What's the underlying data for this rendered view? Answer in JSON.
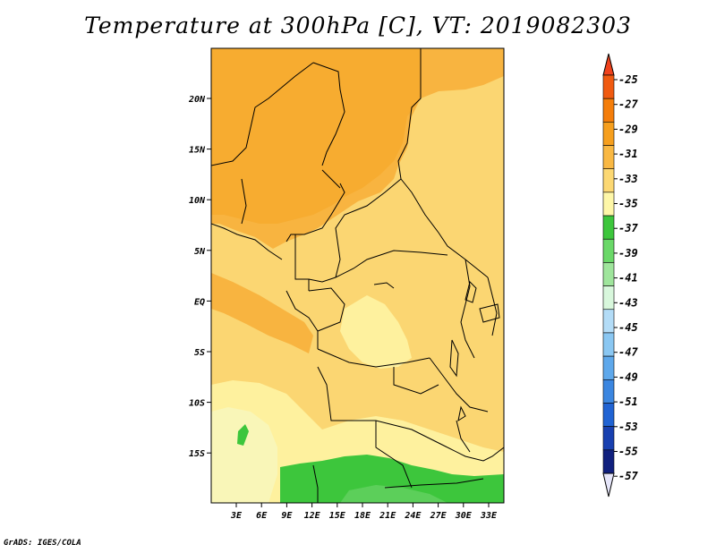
{
  "title": "Temperature at 300hPa [C], VT: 2019082303",
  "credit": "GrADS: IGES/COLA",
  "map": {
    "lat_ticks": [
      "20N",
      "15N",
      "10N",
      "5N",
      "EQ",
      "5S",
      "10S",
      "15S"
    ],
    "lon_ticks": [
      "3E",
      "6E",
      "9E",
      "12E",
      "15E",
      "18E",
      "21E",
      "24E",
      "27E",
      "30E",
      "33E"
    ],
    "field_colors": {
      "c27_29": "#f6a623",
      "c29_31": "#f8b440",
      "c31_33": "#fbd672",
      "c33_35": "#fef19e",
      "c35_37": "#f9f6b8",
      "c37_39": "#3dc63c",
      "c39_41": "#5ccf5a"
    }
  },
  "colorbar": {
    "labels": [
      "-25",
      "-27",
      "-29",
      "-31",
      "-33",
      "-35",
      "-37",
      "-39",
      "-41",
      "-43",
      "-45",
      "-47",
      "-49",
      "-51",
      "-53",
      "-55",
      "-57"
    ],
    "colors": [
      "#f05a10",
      "#f47d0a",
      "#f69f1e",
      "#f9b843",
      "#fcd873",
      "#fef7a8",
      "#3dc63c",
      "#6ad868",
      "#9fe59c",
      "#d8f7dc",
      "#b3dcf7",
      "#8ac7f2",
      "#5ea8eb",
      "#3b86e0",
      "#2063d3",
      "#1840b0",
      "#10207e"
    ],
    "top_cap_color": "#f0421c",
    "bottom_cap_color": "#e6e6fa"
  }
}
